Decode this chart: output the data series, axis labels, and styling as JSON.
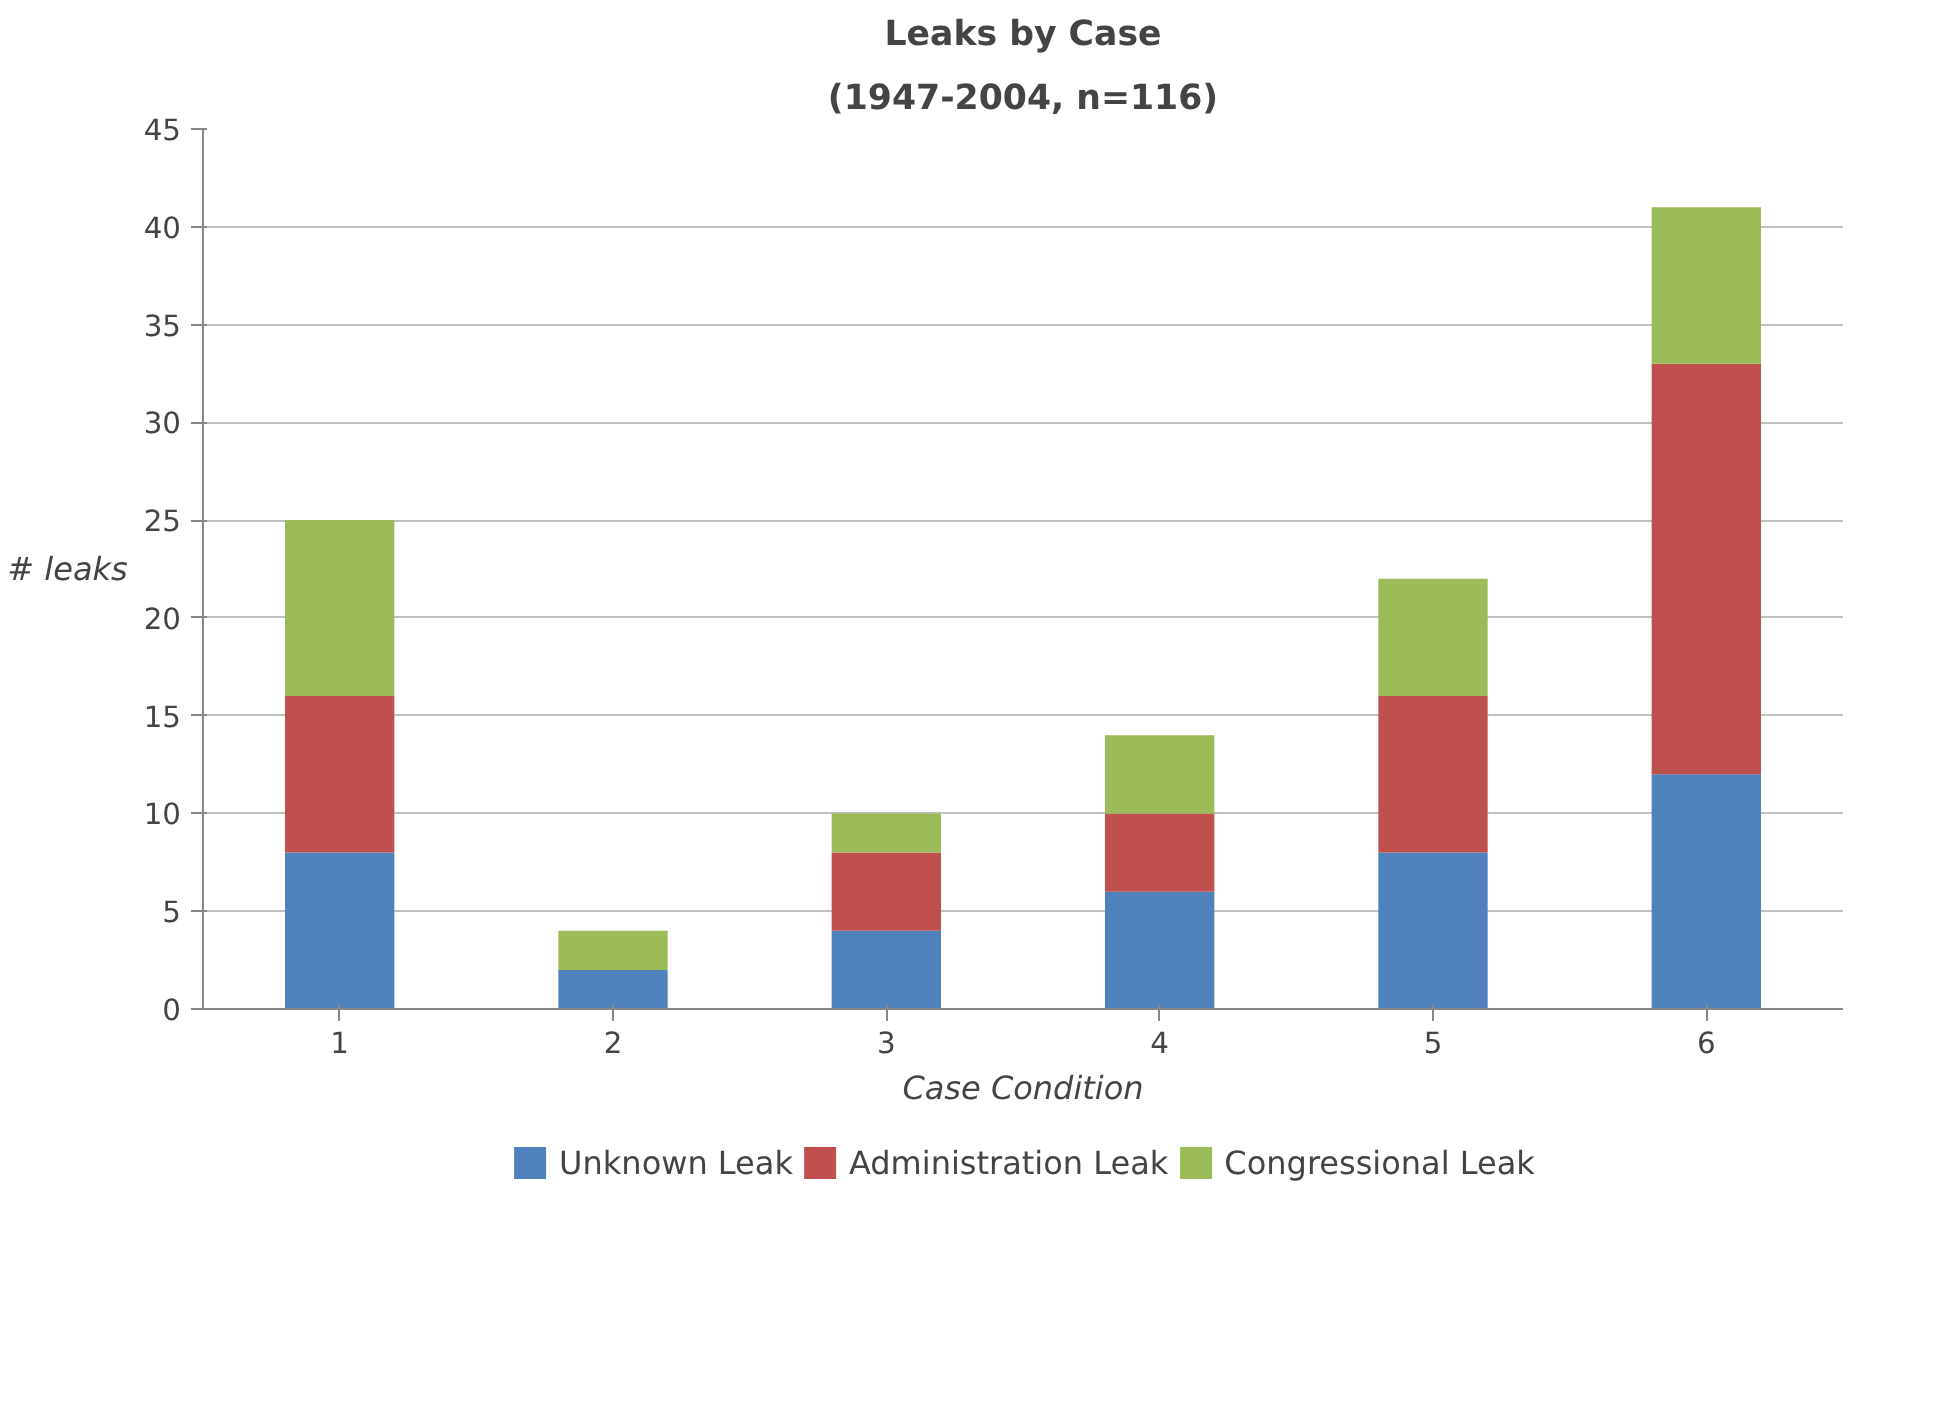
{
  "chart_data": {
    "type": "bar",
    "title": "Leaks by Case",
    "subtitle": "(1947-2004, n=116)",
    "xlabel": "Case Condition",
    "ylabel": "# leaks",
    "categories": [
      "1",
      "2",
      "3",
      "4",
      "5",
      "6"
    ],
    "series": [
      {
        "name": "Unknown Leak",
        "color": "#4f81bd",
        "values": [
          8,
          2,
          4,
          6,
          8,
          12
        ]
      },
      {
        "name": "Administration Leak",
        "color": "#c0504d",
        "values": [
          8,
          0,
          4,
          4,
          8,
          21
        ]
      },
      {
        "name": "Congressional Leak",
        "color": "#9bbb59",
        "values": [
          9,
          2,
          2,
          4,
          6,
          8
        ]
      }
    ],
    "stacked": true,
    "ylim": [
      0,
      45
    ],
    "yticks": [
      0,
      5,
      10,
      15,
      20,
      25,
      30,
      35,
      40,
      45
    ],
    "grid": "y",
    "legend": "bottom"
  }
}
